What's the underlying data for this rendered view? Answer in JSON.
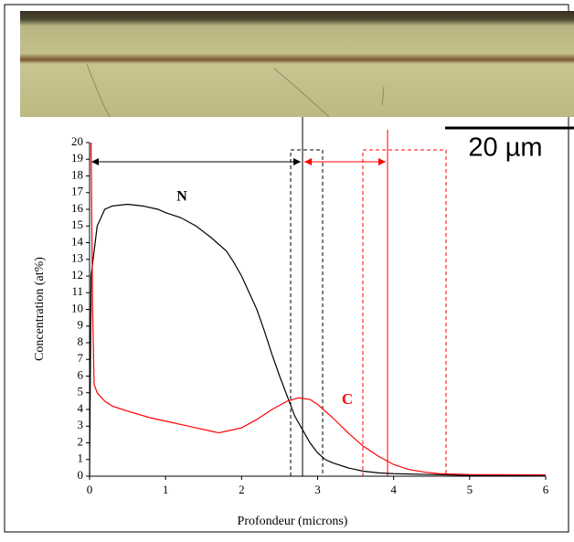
{
  "chart_data": {
    "type": "line",
    "xlabel": "Profondeur (microns)",
    "ylabel": "Concentration (at%)",
    "scale_bar": "20 µm",
    "annotations": [
      "N",
      "C"
    ],
    "xlim": [
      0,
      6
    ],
    "xticks": [
      0,
      1,
      2,
      3,
      4,
      5,
      6
    ],
    "ylim": [
      0,
      20
    ],
    "yticks": [
      0,
      1,
      2,
      3,
      4,
      5,
      6,
      7,
      8,
      9,
      10,
      11,
      12,
      13,
      14,
      15,
      16,
      17,
      18,
      19,
      20
    ],
    "series": [
      {
        "name": "N",
        "color": "#000000",
        "x": [
          0,
          0.02,
          0.1,
          0.2,
          0.3,
          0.5,
          0.7,
          0.9,
          1.0,
          1.2,
          1.4,
          1.6,
          1.8,
          1.9,
          2.0,
          2.1,
          2.2,
          2.3,
          2.4,
          2.5,
          2.6,
          2.7,
          2.8,
          2.9,
          3.0,
          3.1,
          3.2,
          3.4,
          3.6,
          3.8,
          4.0,
          4.5,
          5,
          6
        ],
        "values": [
          0,
          12,
          15,
          16,
          16.2,
          16.3,
          16.2,
          16,
          15.8,
          15.5,
          15,
          14.3,
          13.5,
          12.8,
          12,
          11,
          10,
          8.7,
          7.3,
          6,
          4.8,
          3.6,
          2.8,
          2,
          1.4,
          1,
          0.8,
          0.5,
          0.3,
          0.2,
          0.15,
          0.1,
          0.05,
          0.05
        ]
      },
      {
        "name": "C",
        "color": "#ff0000",
        "x": [
          0.02,
          0.04,
          0.06,
          0.1,
          0.2,
          0.3,
          0.5,
          0.8,
          1.0,
          1.2,
          1.4,
          1.6,
          1.7,
          1.8,
          2.0,
          2.2,
          2.4,
          2.6,
          2.75,
          2.9,
          3.0,
          3.2,
          3.4,
          3.6,
          3.8,
          4.0,
          4.2,
          4.4,
          4.6,
          5,
          6
        ],
        "values": [
          20,
          10,
          5.5,
          5,
          4.5,
          4.2,
          3.9,
          3.5,
          3.3,
          3.1,
          2.9,
          2.7,
          2.6,
          2.7,
          2.9,
          3.4,
          4,
          4.5,
          4.7,
          4.6,
          4.3,
          3.5,
          2.6,
          1.8,
          1.2,
          0.7,
          0.4,
          0.25,
          0.15,
          0.1,
          0.08
        ]
      }
    ]
  }
}
